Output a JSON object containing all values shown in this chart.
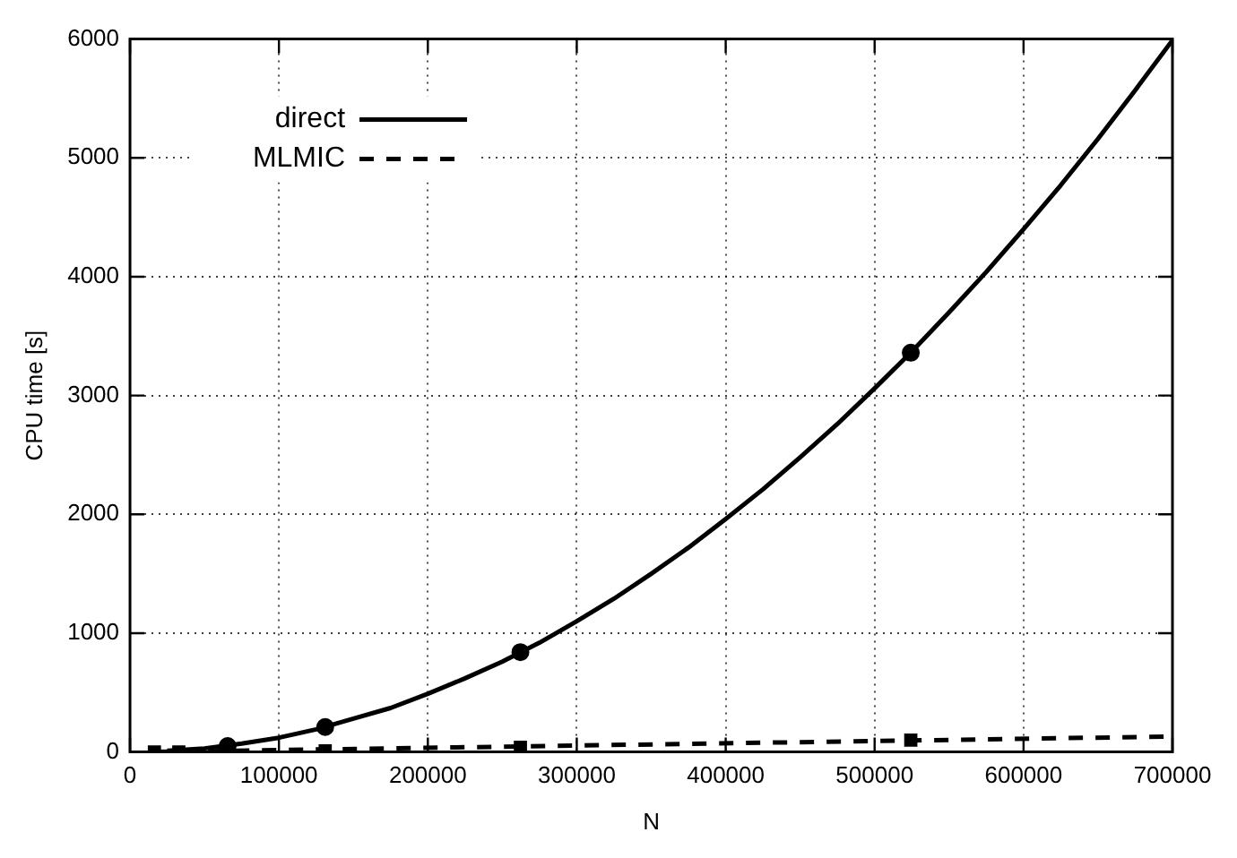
{
  "chart_data": {
    "type": "line",
    "xlabel": "N",
    "ylabel": "CPU time [s]",
    "xlim": [
      0,
      700000
    ],
    "xticks": [
      0,
      100000,
      200000,
      300000,
      400000,
      500000,
      600000,
      700000
    ],
    "ylim": [
      0,
      6000
    ],
    "yticks": [
      0,
      1000,
      2000,
      3000,
      4000,
      5000,
      6000
    ],
    "grid": true,
    "legend": "top left",
    "series": [
      {
        "name": "direct",
        "color": "#000000",
        "marker": "none",
        "line_style": "solid",
        "x": [
          25000,
          50000,
          75000,
          100000,
          125000,
          150000,
          175000,
          200000,
          225000,
          250000,
          275000,
          300000,
          325000,
          350000,
          375000,
          400000,
          425000,
          450000,
          475000,
          500000,
          525000,
          550000,
          575000,
          600000,
          625000,
          650000,
          675000,
          700000
        ],
        "values": [
          10,
          30,
          70,
          120,
          190,
          280,
          370,
          490,
          620,
          760,
          920,
          1100,
          1290,
          1500,
          1720,
          1960,
          2210,
          2480,
          2760,
          3060,
          3370,
          3700,
          4040,
          4400,
          4770,
          5160,
          5570,
          5990
        ]
      },
      {
        "type": "scatter",
        "color": "#000000",
        "marker": "circle",
        "x": [
          65536,
          131072,
          262144,
          524288
        ],
        "values": [
          50,
          210,
          840,
          3360
        ]
      },
      {
        "name": "MLMIC",
        "color": "#000000",
        "marker": "none",
        "line_style": "dashed",
        "x": [
          16384,
          700000
        ],
        "values": [
          0,
          130
        ]
      },
      {
        "type": "scatter",
        "color": "#000000",
        "marker": "square",
        "x": [
          16384,
          32768,
          131072,
          262144,
          524288
        ],
        "values": [
          0,
          0,
          10,
          40,
          100
        ]
      }
    ]
  }
}
